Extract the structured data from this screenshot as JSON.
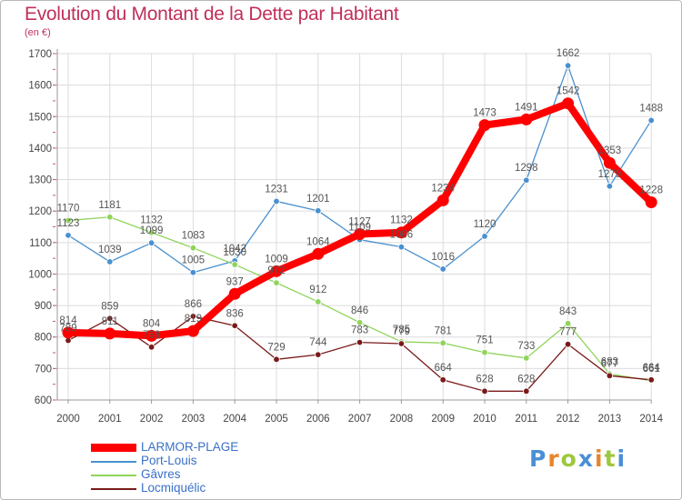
{
  "header": {
    "title": "Evolution du Montant de la Dette par Habitant",
    "subtitle": "(en €)"
  },
  "brand": {
    "text": "Proxiti",
    "letter_colors": [
      "#4a8fd6",
      "#e8862a",
      "#9dc83c",
      "#4a8fd6",
      "#e8862a",
      "#9dc83c",
      "#4a8fd6"
    ]
  },
  "chart_data": {
    "type": "line",
    "title": "Evolution du Montant de la Dette par Habitant",
    "ylabel": "(en €)",
    "xlabel": "",
    "x": [
      "2000",
      "2001",
      "2002",
      "2003",
      "2004",
      "2005",
      "2006",
      "2007",
      "2008",
      "2009",
      "2010",
      "2011",
      "2012",
      "2013",
      "2014"
    ],
    "yticks": [
      "600",
      "700",
      "800",
      "900",
      "1000",
      "1100",
      "1200",
      "1300",
      "1400",
      "1500",
      "1600",
      "1700"
    ],
    "ylim": [
      600,
      1700
    ],
    "grid": true,
    "legend_position": "bottom-left",
    "series": [
      {
        "name": "LARMOR-PLAGE",
        "color": "#ff0000",
        "emphasis": true,
        "values": [
          814,
          811,
          804,
          819,
          937,
          1009,
          1064,
          1127,
          1132,
          1234,
          1473,
          1491,
          1542,
          1353,
          1228
        ]
      },
      {
        "name": "Port-Louis",
        "color": "#4a90cf",
        "emphasis": false,
        "values": [
          1123,
          1039,
          1099,
          1005,
          1042,
          1231,
          1201,
          1109,
          1086,
          1016,
          1120,
          1298,
          1662,
          1279,
          1488
        ]
      },
      {
        "name": "Gâvres",
        "color": "#8fd45c",
        "emphasis": false,
        "values": [
          1170,
          1181,
          1132,
          1083,
          1030,
          972,
          912,
          846,
          785,
          781,
          751,
          733,
          843,
          683,
          661
        ]
      },
      {
        "name": "Locmiquélic",
        "color": "#7a1a1a",
        "emphasis": false,
        "values": [
          789,
          859,
          768,
          866,
          836,
          729,
          744,
          783,
          779,
          664,
          628,
          628,
          777,
          677,
          664
        ]
      }
    ]
  }
}
